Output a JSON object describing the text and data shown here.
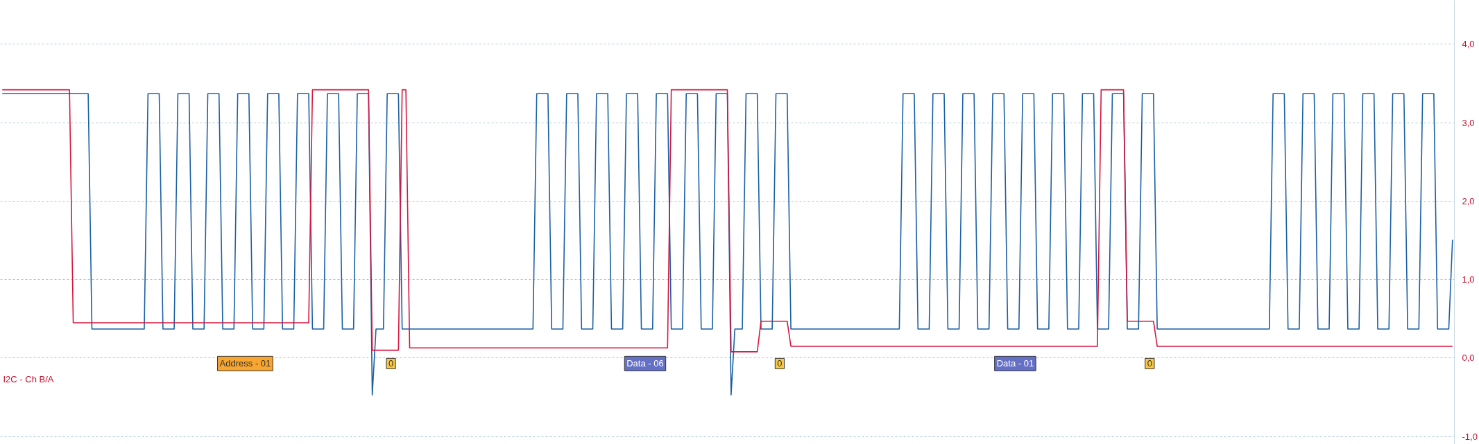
{
  "chart_data": {
    "type": "line",
    "grid": "y",
    "line_style": "solid",
    "categories": [
      null,
      null,
      null,
      null,
      null,
      null,
      null,
      null,
      null,
      null,
      null,
      null,
      null,
      null,
      null,
      null,
      null,
      null,
      null,
      null,
      null,
      null,
      null,
      null,
      null,
      null,
      null,
      null,
      null,
      null,
      null,
      null,
      null,
      null,
      null,
      null,
      null,
      null,
      null,
      null,
      null,
      null,
      null,
      null,
      null,
      null,
      null,
      null,
      null,
      null,
      null,
      null,
      null,
      null,
      null,
      null,
      null,
      null,
      null,
      null,
      null,
      null,
      null,
      null,
      null,
      "Address - 01",
      null,
      null,
      null,
      null,
      null,
      null,
      null,
      null,
      null,
      null,
      null,
      null,
      null,
      null,
      null,
      null,
      null,
      null,
      null,
      null,
      null,
      null,
      null,
      null,
      null,
      null,
      null,
      null,
      null,
      null,
      null,
      null,
      null,
      null,
      null,
      null,
      null,
      null,
      "0",
      null,
      null,
      null,
      null,
      null,
      null,
      null,
      null,
      null,
      null,
      null,
      null,
      null,
      null,
      null,
      null,
      null,
      null,
      null,
      null,
      null,
      null,
      null,
      null,
      null,
      null,
      null,
      null,
      null,
      null,
      null,
      null,
      null,
      null,
      null,
      null,
      null,
      null,
      null,
      null,
      null,
      null,
      null,
      null,
      null,
      null,
      null,
      null,
      null,
      null,
      null,
      null,
      null,
      null,
      null,
      null,
      null,
      null,
      null,
      null,
      null,
      null,
      null,
      null,
      null,
      null,
      null,
      "Data - 06",
      null,
      null,
      null,
      null,
      null,
      null,
      null,
      null,
      null,
      null,
      null,
      null,
      null,
      null,
      null,
      null,
      null,
      null,
      null,
      null,
      null,
      null,
      null,
      null,
      null,
      null,
      null,
      null,
      null,
      null,
      null,
      null,
      null,
      null,
      null,
      "0",
      null,
      null,
      null,
      null,
      null,
      null,
      null,
      null,
      null,
      null,
      null,
      null,
      null,
      null,
      null,
      null,
      null,
      null,
      null,
      null,
      null,
      null,
      null,
      null,
      null,
      null,
      null,
      null,
      null,
      null,
      null,
      null,
      null,
      null,
      null,
      null,
      null,
      null,
      null,
      null,
      null,
      null,
      null,
      null,
      null,
      null,
      null,
      null,
      null,
      null,
      null,
      null,
      null,
      null,
      null,
      null,
      null,
      null,
      null,
      null,
      null,
      null,
      "Data - 01",
      null,
      null,
      null,
      null,
      null,
      null,
      null,
      null,
      null,
      null,
      null,
      null,
      null,
      null,
      null,
      null,
      null,
      null,
      null,
      null,
      null,
      null,
      null,
      null,
      null,
      null,
      null,
      null,
      null,
      null,
      null,
      null,
      null,
      null,
      null,
      "0",
      null,
      null,
      null,
      null,
      null,
      null,
      null,
      null,
      null,
      null,
      null,
      null,
      null,
      null,
      null,
      null,
      null,
      null,
      null,
      null,
      null,
      null,
      null,
      null,
      null,
      null,
      null,
      null,
      null,
      null,
      null,
      null,
      null,
      null,
      null,
      null,
      null,
      null,
      null,
      null,
      null,
      null,
      null,
      null,
      null,
      null,
      null,
      null,
      null,
      null,
      null,
      null,
      null,
      null,
      null,
      null,
      null,
      null,
      null,
      null,
      null,
      null,
      null,
      null,
      null,
      null,
      null,
      null,
      null,
      null,
      null,
      null,
      null,
      null,
      null,
      null,
      null,
      null,
      null,
      null,
      null
    ],
    "ylim": [
      -1.1,
      4.56
    ],
    "yticks": [
      {
        "value": -1,
        "label": "-1,0"
      },
      {
        "value": 0,
        "label": "0,0"
      },
      {
        "value": 1,
        "label": "1,0"
      },
      {
        "value": 2,
        "label": "2,0"
      },
      {
        "value": 3,
        "label": "3,0"
      },
      {
        "value": 4,
        "label": "4,0"
      }
    ],
    "series": [
      {
        "color": "#1a5fa3",
        "values": [
          3.37,
          3.37,
          3.37,
          3.37,
          3.37,
          3.37,
          3.37,
          3.37,
          3.37,
          3.37,
          3.37,
          3.37,
          3.37,
          3.37,
          3.37,
          3.37,
          3.37,
          3.37,
          3.37,
          3.37,
          3.37,
          3.37,
          3.37,
          3.37,
          0.37,
          0.37,
          0.37,
          0.37,
          0.37,
          0.37,
          0.37,
          0.37,
          0.37,
          0.37,
          0.37,
          0.37,
          0.37,
          0.37,
          0.37,
          3.37,
          3.37,
          3.37,
          3.37,
          0.37,
          0.37,
          0.37,
          0.37,
          3.37,
          3.37,
          3.37,
          3.37,
          0.37,
          0.37,
          0.37,
          0.37,
          3.37,
          3.37,
          3.37,
          3.37,
          0.37,
          0.37,
          0.37,
          0.37,
          3.37,
          3.37,
          3.37,
          3.37,
          0.37,
          0.37,
          0.37,
          0.37,
          3.37,
          3.37,
          3.37,
          3.37,
          0.37,
          0.37,
          0.37,
          0.37,
          3.37,
          3.37,
          3.37,
          3.37,
          0.37,
          0.37,
          0.37,
          0.37,
          3.37,
          3.37,
          3.37,
          3.37,
          0.37,
          0.37,
          0.37,
          0.37,
          3.37,
          3.37,
          3.37,
          3.37,
          -0.47,
          0.37,
          0.37,
          0.37,
          3.37,
          3.37,
          3.37,
          3.37,
          0.37,
          0.37,
          0.37,
          0.37,
          0.37,
          0.37,
          0.37,
          0.37,
          0.37,
          0.37,
          0.37,
          0.37,
          0.37,
          0.37,
          0.37,
          0.37,
          0.37,
          0.37,
          0.37,
          0.37,
          0.37,
          0.37,
          0.37,
          0.37,
          0.37,
          0.37,
          0.37,
          0.37,
          0.37,
          0.37,
          0.37,
          0.37,
          0.37,
          0.37,
          0.37,
          0.37,
          3.37,
          3.37,
          3.37,
          3.37,
          0.37,
          0.37,
          0.37,
          0.37,
          3.37,
          3.37,
          3.37,
          3.37,
          0.37,
          0.37,
          0.37,
          0.37,
          3.37,
          3.37,
          3.37,
          3.37,
          0.37,
          0.37,
          0.37,
          0.37,
          3.37,
          3.37,
          3.37,
          3.37,
          0.37,
          0.37,
          0.37,
          0.37,
          3.37,
          3.37,
          3.37,
          3.37,
          0.37,
          0.37,
          0.37,
          0.37,
          3.37,
          3.37,
          3.37,
          3.37,
          0.37,
          0.37,
          0.37,
          0.37,
          3.37,
          3.37,
          3.37,
          3.37,
          -0.47,
          0.37,
          0.37,
          0.37,
          3.37,
          3.37,
          3.37,
          3.37,
          0.37,
          0.37,
          0.37,
          0.37,
          3.37,
          3.37,
          3.37,
          3.37,
          0.37,
          0.37,
          0.37,
          0.37,
          0.37,
          0.37,
          0.37,
          0.37,
          0.37,
          0.37,
          0.37,
          0.37,
          0.37,
          0.37,
          0.37,
          0.37,
          0.37,
          0.37,
          0.37,
          0.37,
          0.37,
          0.37,
          0.37,
          0.37,
          0.37,
          0.37,
          0.37,
          0.37,
          0.37,
          0.37,
          3.37,
          3.37,
          3.37,
          3.37,
          0.37,
          0.37,
          0.37,
          0.37,
          3.37,
          3.37,
          3.37,
          3.37,
          0.37,
          0.37,
          0.37,
          0.37,
          3.37,
          3.37,
          3.37,
          3.37,
          0.37,
          0.37,
          0.37,
          0.37,
          3.37,
          3.37,
          3.37,
          3.37,
          0.37,
          0.37,
          0.37,
          0.37,
          3.37,
          3.37,
          3.37,
          3.37,
          0.37,
          0.37,
          0.37,
          0.37,
          3.37,
          3.37,
          3.37,
          3.37,
          0.37,
          0.37,
          0.37,
          0.37,
          3.37,
          3.37,
          3.37,
          3.37,
          0.37,
          0.37,
          0.37,
          0.37,
          3.37,
          3.37,
          3.37,
          3.37,
          0.37,
          0.37,
          0.37,
          0.37,
          3.37,
          3.37,
          3.37,
          3.37,
          0.37,
          0.37,
          0.37,
          0.37,
          0.37,
          0.37,
          0.37,
          0.37,
          0.37,
          0.37,
          0.37,
          0.37,
          0.37,
          0.37,
          0.37,
          0.37,
          0.37,
          0.37,
          0.37,
          0.37,
          0.37,
          0.37,
          0.37,
          0.37,
          0.37,
          0.37,
          0.37,
          0.37,
          0.37,
          0.37,
          0.37,
          3.37,
          3.37,
          3.37,
          3.37,
          0.37,
          0.37,
          0.37,
          0.37,
          3.37,
          3.37,
          3.37,
          3.37,
          0.37,
          0.37,
          0.37,
          0.37,
          3.37,
          3.37,
          3.37,
          3.37,
          0.37,
          0.37,
          0.37,
          0.37,
          3.37,
          3.37,
          3.37,
          3.37,
          0.37,
          0.37,
          0.37,
          0.37,
          3.37,
          3.37,
          3.37,
          3.37,
          0.37,
          0.37,
          0.37,
          0.37,
          3.37,
          3.37,
          3.37,
          3.37,
          0.37,
          0.37,
          0.37,
          0.37,
          1.51
        ]
      },
      {
        "color": "#d7163f",
        "values": [
          3.42,
          3.42,
          3.42,
          3.42,
          3.42,
          3.42,
          3.42,
          3.42,
          3.42,
          3.42,
          3.42,
          3.42,
          3.42,
          3.42,
          3.42,
          3.42,
          3.42,
          3.42,
          3.42,
          0.45,
          0.45,
          0.45,
          0.45,
          0.45,
          0.45,
          0.45,
          0.45,
          0.45,
          0.45,
          0.45,
          0.45,
          0.45,
          0.45,
          0.45,
          0.45,
          0.45,
          0.45,
          0.45,
          0.45,
          0.45,
          0.45,
          0.45,
          0.45,
          0.45,
          0.45,
          0.45,
          0.45,
          0.45,
          0.45,
          0.45,
          0.45,
          0.45,
          0.45,
          0.45,
          0.45,
          0.45,
          0.45,
          0.45,
          0.45,
          0.45,
          0.45,
          0.45,
          0.45,
          0.45,
          0.45,
          0.45,
          0.45,
          0.45,
          0.45,
          0.45,
          0.45,
          0.45,
          0.45,
          0.45,
          0.45,
          0.45,
          0.45,
          0.45,
          0.45,
          0.45,
          0.45,
          0.45,
          0.45,
          3.42,
          3.42,
          3.42,
          3.42,
          3.42,
          3.42,
          3.42,
          3.42,
          3.42,
          3.42,
          3.42,
          3.42,
          3.42,
          3.42,
          3.42,
          3.42,
          0.1,
          0.1,
          0.1,
          0.1,
          0.1,
          0.1,
          0.1,
          0.1,
          3.42,
          3.42,
          0.13,
          0.13,
          0.13,
          0.13,
          0.13,
          0.13,
          0.13,
          0.13,
          0.13,
          0.13,
          0.13,
          0.13,
          0.13,
          0.13,
          0.13,
          0.13,
          0.13,
          0.13,
          0.13,
          0.13,
          0.13,
          0.13,
          0.13,
          0.13,
          0.13,
          0.13,
          0.13,
          0.13,
          0.13,
          0.13,
          0.13,
          0.13,
          0.13,
          0.13,
          0.13,
          0.13,
          0.13,
          0.13,
          0.13,
          0.13,
          0.13,
          0.13,
          0.13,
          0.13,
          0.13,
          0.13,
          0.13,
          0.13,
          0.13,
          0.13,
          0.13,
          0.13,
          0.13,
          0.13,
          0.13,
          0.13,
          0.13,
          0.13,
          0.13,
          0.13,
          0.13,
          0.13,
          0.13,
          0.13,
          0.13,
          0.13,
          0.13,
          0.13,
          0.13,
          0.13,
          3.42,
          3.42,
          3.42,
          3.42,
          3.42,
          3.42,
          3.42,
          3.42,
          3.42,
          3.42,
          3.42,
          3.42,
          3.42,
          3.42,
          3.42,
          3.42,
          0.08,
          0.08,
          0.08,
          0.08,
          0.08,
          0.08,
          0.08,
          0.08,
          0.47,
          0.47,
          0.47,
          0.47,
          0.47,
          0.47,
          0.47,
          0.47,
          0.15,
          0.15,
          0.15,
          0.15,
          0.15,
          0.15,
          0.15,
          0.15,
          0.15,
          0.15,
          0.15,
          0.15,
          0.15,
          0.15,
          0.15,
          0.15,
          0.15,
          0.15,
          0.15,
          0.15,
          0.15,
          0.15,
          0.15,
          0.15,
          0.15,
          0.15,
          0.15,
          0.15,
          0.15,
          0.15,
          0.15,
          0.15,
          0.15,
          0.15,
          0.15,
          0.15,
          0.15,
          0.15,
          0.15,
          0.15,
          0.15,
          0.15,
          0.15,
          0.15,
          0.15,
          0.15,
          0.15,
          0.15,
          0.15,
          0.15,
          0.15,
          0.15,
          0.15,
          0.15,
          0.15,
          0.15,
          0.15,
          0.15,
          0.15,
          0.15,
          0.15,
          0.15,
          0.15,
          0.15,
          0.15,
          0.15,
          0.15,
          0.15,
          0.15,
          0.15,
          0.15,
          0.15,
          0.15,
          0.15,
          0.15,
          0.15,
          0.15,
          0.15,
          0.15,
          0.15,
          0.15,
          0.15,
          0.15,
          3.42,
          3.42,
          3.42,
          3.42,
          3.42,
          3.42,
          3.42,
          0.47,
          0.47,
          0.47,
          0.47,
          0.47,
          0.47,
          0.47,
          0.47,
          0.15,
          0.15,
          0.15,
          0.15,
          0.15,
          0.15,
          0.15,
          0.15,
          0.15,
          0.15,
          0.15,
          0.15,
          0.15,
          0.15,
          0.15,
          0.15,
          0.15,
          0.15,
          0.15,
          0.15,
          0.15,
          0.15,
          0.15,
          0.15,
          0.15,
          0.15,
          0.15,
          0.15,
          0.15,
          0.15,
          0.15,
          0.15,
          0.15,
          0.15,
          0.15,
          0.15,
          0.15,
          0.15,
          0.15,
          0.15,
          0.15,
          0.15,
          0.15,
          0.15,
          0.15,
          0.15,
          0.15,
          0.15,
          0.15,
          0.15,
          0.15,
          0.15,
          0.15,
          0.15,
          0.15,
          0.15,
          0.15,
          0.15,
          0.15,
          0.15,
          0.15,
          0.15,
          0.15,
          0.15,
          0.15,
          0.15,
          0.15,
          0.15,
          0.15,
          0.15,
          0.15,
          0.15,
          0.15,
          0.15,
          0.15,
          0.15,
          0.15,
          0.15,
          0.15,
          0.15
        ]
      }
    ],
    "annotations": [
      "I2C - Ch B/A"
    ]
  }
}
